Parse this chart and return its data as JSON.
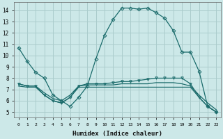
{
  "xlabel": "Humidex (Indice chaleur)",
  "bg_color": "#cce8e8",
  "grid_color": "#aacccc",
  "line_color": "#1a6b6b",
  "ylim": [
    4.5,
    14.7
  ],
  "xlim": [
    -0.5,
    23.5
  ],
  "yticks": [
    5,
    6,
    7,
    8,
    9,
    10,
    11,
    12,
    13,
    14
  ],
  "xticks": [
    0,
    1,
    2,
    3,
    4,
    5,
    6,
    7,
    8,
    9,
    10,
    11,
    12,
    13,
    14,
    15,
    16,
    17,
    18,
    19,
    20,
    21,
    22,
    23
  ],
  "series": [
    {
      "x": [
        0,
        1,
        2,
        3,
        4,
        5,
        6,
        7,
        8,
        9,
        10,
        11,
        12,
        13,
        14,
        15,
        16,
        17,
        18,
        19,
        20,
        21,
        22,
        23
      ],
      "y": [
        10.7,
        9.5,
        8.5,
        8.0,
        6.5,
        6.0,
        5.5,
        6.3,
        7.3,
        9.7,
        11.8,
        13.2,
        14.2,
        14.2,
        14.1,
        14.2,
        13.8,
        13.3,
        12.2,
        10.3,
        10.3,
        8.6,
        5.5,
        5.0
      ],
      "marker": "D",
      "markersize": 2.5
    },
    {
      "x": [
        0,
        1,
        2,
        3,
        4,
        5,
        6,
        7,
        8,
        9,
        10,
        11,
        12,
        13,
        14,
        15,
        16,
        17,
        18,
        19,
        20,
        21,
        22,
        23
      ],
      "y": [
        7.5,
        7.3,
        7.3,
        6.5,
        6.0,
        5.8,
        6.3,
        7.3,
        7.5,
        7.5,
        7.5,
        7.6,
        7.7,
        7.7,
        7.8,
        7.9,
        8.0,
        8.0,
        8.0,
        8.0,
        7.5,
        6.3,
        5.5,
        5.0
      ],
      "marker": "v",
      "markersize": 2.5
    },
    {
      "x": [
        0,
        1,
        2,
        3,
        4,
        5,
        6,
        7,
        8,
        9,
        10,
        11,
        12,
        13,
        14,
        15,
        16,
        17,
        18,
        19,
        20,
        21,
        22,
        23
      ],
      "y": [
        7.5,
        7.3,
        7.3,
        6.7,
        6.2,
        6.0,
        6.5,
        7.3,
        7.4,
        7.4,
        7.4,
        7.4,
        7.5,
        7.5,
        7.5,
        7.5,
        7.6,
        7.6,
        7.6,
        7.5,
        7.3,
        6.5,
        5.8,
        5.2
      ],
      "marker": null,
      "markersize": 0
    },
    {
      "x": [
        0,
        1,
        2,
        3,
        4,
        5,
        6,
        7,
        8,
        9,
        10,
        11,
        12,
        13,
        14,
        15,
        16,
        17,
        18,
        19,
        20,
        21,
        22,
        23
      ],
      "y": [
        7.3,
        7.2,
        7.2,
        6.5,
        6.0,
        5.8,
        6.3,
        7.2,
        7.2,
        7.2,
        7.2,
        7.2,
        7.2,
        7.2,
        7.2,
        7.2,
        7.2,
        7.2,
        7.2,
        7.2,
        7.2,
        6.3,
        5.5,
        5.0
      ],
      "marker": null,
      "markersize": 0
    }
  ]
}
